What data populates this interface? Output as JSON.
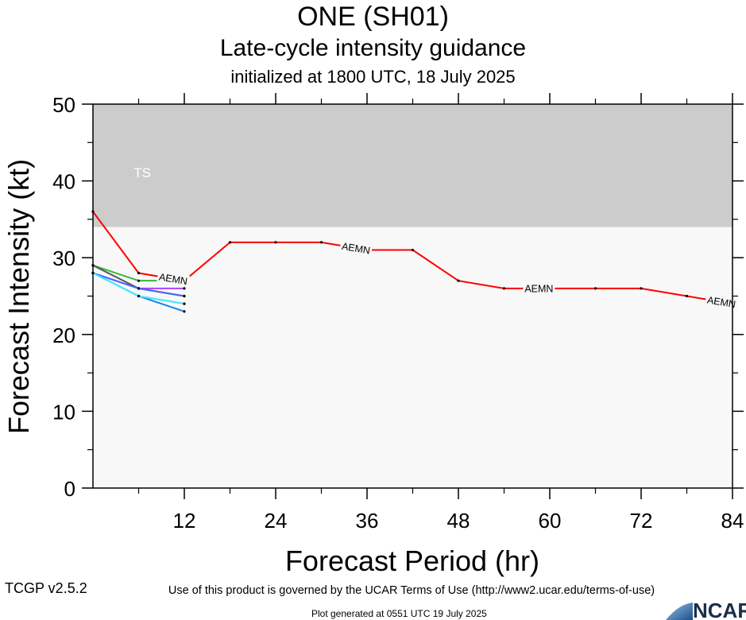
{
  "header": {
    "title": "ONE (SH01)",
    "subtitle": "Late-cycle intensity guidance",
    "init": "initialized at 1800 UTC, 18 July 2025"
  },
  "footer": {
    "terms": "Use of this product is governed by the UCAR Terms of Use (http://www2.ucar.edu/terms-of-use)",
    "version": "TCGP v2.5.2",
    "generated": "Plot generated at 0551 UTC   19 July 2025",
    "logo_text": "NCAR"
  },
  "chart_data": {
    "type": "line",
    "xlabel": "Forecast Period (hr)",
    "ylabel": "Forecast Intensity (kt)",
    "xlim": [
      0,
      84
    ],
    "ylim": [
      0,
      50
    ],
    "xticks": [
      12,
      24,
      36,
      48,
      60,
      72,
      84
    ],
    "yticks": [
      0,
      10,
      20,
      30,
      40,
      50
    ],
    "bands": [
      {
        "label": "TS",
        "from": 34,
        "to": 50,
        "color": "#cccccc"
      }
    ],
    "plot_background": "#f8f8f8",
    "series": [
      {
        "name": "AEMN",
        "color": "#ff0000",
        "x": [
          0,
          6,
          12,
          18,
          24,
          30,
          36,
          42,
          48,
          54,
          60,
          66,
          72,
          78,
          84
        ],
        "y": [
          36,
          28,
          27,
          32,
          32,
          32,
          31,
          31,
          27,
          26,
          26,
          26,
          26,
          25,
          24
        ],
        "label_at_x": [
          12,
          36,
          60,
          84
        ]
      },
      {
        "color": "#33bb33",
        "x": [
          0,
          6,
          12
        ],
        "y": [
          29,
          27,
          27
        ]
      },
      {
        "color": "#aa44ff",
        "x": [
          0,
          6,
          12
        ],
        "y": [
          28,
          26,
          26
        ]
      },
      {
        "color": "#555555",
        "x": [
          0,
          6,
          12
        ],
        "y": [
          29,
          26,
          25
        ]
      },
      {
        "color": "#4466ff",
        "x": [
          0,
          6,
          12
        ],
        "y": [
          28,
          26,
          25
        ]
      },
      {
        "color": "#22aadd",
        "x": [
          0,
          6,
          12
        ],
        "y": [
          28,
          25,
          24
        ]
      },
      {
        "color": "#1188ee",
        "x": [
          0,
          6,
          12
        ],
        "y": [
          28,
          25,
          23
        ]
      },
      {
        "color": "#44eeff",
        "x": [
          0,
          6,
          12
        ],
        "y": [
          28,
          25,
          24
        ]
      }
    ]
  }
}
